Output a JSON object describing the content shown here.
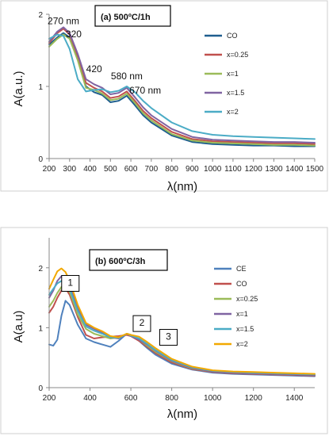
{
  "chart_data": [
    {
      "type": "line",
      "title": "(a) 500ºC/1h",
      "xlabel": "λ(nm)",
      "ylabel": "A(a.u.)",
      "xlim": [
        200,
        1500
      ],
      "ylim": [
        0,
        2
      ],
      "xticks": [
        "200",
        "300",
        "400",
        "500",
        "600",
        "700",
        "800",
        "900",
        "1000",
        "1100",
        "1200",
        "1300",
        "1400",
        "1500"
      ],
      "yticks": [
        "0",
        "1",
        "2"
      ],
      "legend_position": "right",
      "annotations": [
        {
          "text": "270 nm",
          "x": 270,
          "y": 1.86
        },
        {
          "text": "320",
          "x": 320,
          "y": 1.68
        },
        {
          "text": "420",
          "x": 420,
          "y": 1.2
        },
        {
          "text": "580 nm",
          "x": 580,
          "y": 1.1
        },
        {
          "text": "670 nm",
          "x": 670,
          "y": 0.9
        }
      ],
      "series": [
        {
          "name": "CO",
          "color": "#1f5f8f",
          "x": [
            200,
            240,
            270,
            300,
            340,
            380,
            420,
            460,
            500,
            540,
            580,
            620,
            660,
            700,
            800,
            900,
            1000,
            1100,
            1200,
            1300,
            1400,
            1500
          ],
          "y": [
            1.58,
            1.68,
            1.74,
            1.68,
            1.38,
            1.0,
            0.92,
            0.88,
            0.78,
            0.8,
            0.87,
            0.74,
            0.6,
            0.5,
            0.32,
            0.23,
            0.2,
            0.19,
            0.18,
            0.18,
            0.17,
            0.17
          ]
        },
        {
          "name": "x=0.25",
          "color": "#c0504d",
          "x": [
            200,
            240,
            270,
            300,
            340,
            380,
            420,
            460,
            500,
            540,
            580,
            620,
            660,
            700,
            800,
            900,
            1000,
            1100,
            1200,
            1300,
            1400,
            1500
          ],
          "y": [
            1.6,
            1.74,
            1.8,
            1.72,
            1.42,
            1.05,
            0.98,
            0.93,
            0.84,
            0.86,
            0.93,
            0.8,
            0.66,
            0.56,
            0.37,
            0.27,
            0.24,
            0.23,
            0.22,
            0.21,
            0.21,
            0.2
          ]
        },
        {
          "name": "x=1",
          "color": "#9bbb59",
          "x": [
            200,
            240,
            270,
            300,
            340,
            380,
            420,
            460,
            500,
            540,
            580,
            620,
            660,
            700,
            800,
            900,
            1000,
            1100,
            1200,
            1300,
            1400,
            1500
          ],
          "y": [
            1.55,
            1.66,
            1.72,
            1.66,
            1.36,
            0.98,
            0.95,
            0.9,
            0.81,
            0.83,
            0.9,
            0.77,
            0.63,
            0.53,
            0.34,
            0.25,
            0.22,
            0.21,
            0.2,
            0.19,
            0.19,
            0.18
          ]
        },
        {
          "name": "x=1.5",
          "color": "#8064a2",
          "x": [
            200,
            240,
            270,
            300,
            340,
            380,
            420,
            460,
            500,
            540,
            580,
            620,
            660,
            700,
            800,
            900,
            1000,
            1100,
            1200,
            1300,
            1400,
            1500
          ],
          "y": [
            1.62,
            1.76,
            1.82,
            1.74,
            1.45,
            1.1,
            1.03,
            0.98,
            0.89,
            0.91,
            0.98,
            0.85,
            0.71,
            0.6,
            0.41,
            0.3,
            0.26,
            0.25,
            0.24,
            0.23,
            0.23,
            0.22
          ]
        },
        {
          "name": "x=2",
          "color": "#4bacc6",
          "x": [
            200,
            240,
            270,
            300,
            340,
            380,
            420,
            460,
            500,
            540,
            580,
            620,
            660,
            700,
            800,
            900,
            1000,
            1100,
            1200,
            1300,
            1400,
            1500
          ],
          "y": [
            1.66,
            1.72,
            1.7,
            1.52,
            1.1,
            0.93,
            0.95,
            0.96,
            0.92,
            0.94,
            1.0,
            0.92,
            0.8,
            0.7,
            0.5,
            0.38,
            0.33,
            0.31,
            0.3,
            0.29,
            0.28,
            0.27
          ]
        }
      ]
    },
    {
      "type": "line",
      "title": "(b) 600ºC/3h",
      "xlabel": "λ(nm)",
      "ylabel": "A(a.u)",
      "xlim": [
        200,
        1500
      ],
      "ylim": [
        0,
        2.5
      ],
      "xticks": [
        "200",
        "400",
        "600",
        "800",
        "1000",
        "1200",
        "1400"
      ],
      "yticks": [
        "0",
        "1",
        "2"
      ],
      "legend_position": "right",
      "annotations": [
        {
          "text": "1",
          "x": 300,
          "y": 1.7
        },
        {
          "text": "2",
          "x": 650,
          "y": 1.03
        },
        {
          "text": "3",
          "x": 780,
          "y": 0.8
        }
      ],
      "series": [
        {
          "name": "CE",
          "color": "#4f81bd",
          "x": [
            200,
            220,
            240,
            260,
            280,
            300,
            340,
            380,
            420,
            460,
            500,
            540,
            580,
            600,
            640,
            680,
            720,
            800,
            900,
            1000,
            1100,
            1200,
            1300,
            1400,
            1500
          ],
          "y": [
            0.72,
            0.7,
            0.8,
            1.2,
            1.45,
            1.38,
            1.05,
            0.82,
            0.76,
            0.72,
            0.68,
            0.78,
            0.9,
            0.88,
            0.78,
            0.66,
            0.55,
            0.4,
            0.3,
            0.25,
            0.23,
            0.22,
            0.21,
            0.2,
            0.19
          ]
        },
        {
          "name": "CO",
          "color": "#c0504d",
          "x": [
            200,
            220,
            240,
            260,
            280,
            300,
            340,
            380,
            420,
            460,
            500,
            540,
            580,
            600,
            640,
            680,
            720,
            800,
            900,
            1000,
            1100,
            1200,
            1300,
            1400,
            1500
          ],
          "y": [
            1.25,
            1.35,
            1.5,
            1.62,
            1.66,
            1.55,
            1.18,
            0.88,
            0.82,
            0.84,
            0.85,
            0.86,
            0.88,
            0.86,
            0.78,
            0.68,
            0.58,
            0.42,
            0.31,
            0.26,
            0.24,
            0.23,
            0.22,
            0.21,
            0.2
          ]
        },
        {
          "name": "x=0.25",
          "color": "#9bbb59",
          "x": [
            200,
            220,
            240,
            260,
            280,
            300,
            340,
            380,
            420,
            460,
            500,
            540,
            580,
            600,
            640,
            680,
            720,
            800,
            900,
            1000,
            1100,
            1200,
            1300,
            1400,
            1500
          ],
          "y": [
            1.35,
            1.45,
            1.58,
            1.68,
            1.7,
            1.6,
            1.22,
            0.98,
            0.9,
            0.86,
            0.82,
            0.84,
            0.9,
            0.88,
            0.8,
            0.7,
            0.6,
            0.44,
            0.32,
            0.27,
            0.25,
            0.24,
            0.23,
            0.22,
            0.21
          ]
        },
        {
          "name": "x=1",
          "color": "#8064a2",
          "x": [
            200,
            220,
            240,
            260,
            280,
            300,
            340,
            380,
            420,
            460,
            500,
            540,
            580,
            600,
            640,
            680,
            720,
            800,
            900,
            1000,
            1100,
            1200,
            1300,
            1400,
            1500
          ],
          "y": [
            1.5,
            1.62,
            1.78,
            1.86,
            1.82,
            1.7,
            1.32,
            1.05,
            0.98,
            0.92,
            0.84,
            0.82,
            0.9,
            0.86,
            0.8,
            0.72,
            0.62,
            0.45,
            0.33,
            0.27,
            0.25,
            0.24,
            0.23,
            0.22,
            0.21
          ]
        },
        {
          "name": "x=1.5",
          "color": "#4bacc6",
          "x": [
            200,
            220,
            240,
            260,
            280,
            300,
            340,
            380,
            420,
            460,
            500,
            540,
            580,
            600,
            640,
            680,
            720,
            800,
            900,
            1000,
            1100,
            1200,
            1300,
            1400,
            1500
          ],
          "y": [
            1.55,
            1.65,
            1.74,
            1.78,
            1.75,
            1.65,
            1.28,
            1.02,
            0.95,
            0.9,
            0.84,
            0.83,
            0.9,
            0.87,
            0.82,
            0.73,
            0.63,
            0.46,
            0.34,
            0.28,
            0.26,
            0.25,
            0.24,
            0.23,
            0.22
          ]
        },
        {
          "name": "x=2",
          "color": "#f2a800",
          "x": [
            200,
            220,
            240,
            260,
            280,
            300,
            340,
            380,
            420,
            460,
            500,
            540,
            580,
            600,
            640,
            680,
            720,
            800,
            900,
            1000,
            1100,
            1200,
            1300,
            1400,
            1500
          ],
          "y": [
            1.65,
            1.8,
            1.94,
            1.99,
            1.93,
            1.78,
            1.38,
            1.08,
            1.0,
            0.94,
            0.86,
            0.84,
            0.9,
            0.88,
            0.85,
            0.76,
            0.66,
            0.48,
            0.35,
            0.29,
            0.27,
            0.26,
            0.25,
            0.24,
            0.23
          ]
        }
      ]
    }
  ]
}
